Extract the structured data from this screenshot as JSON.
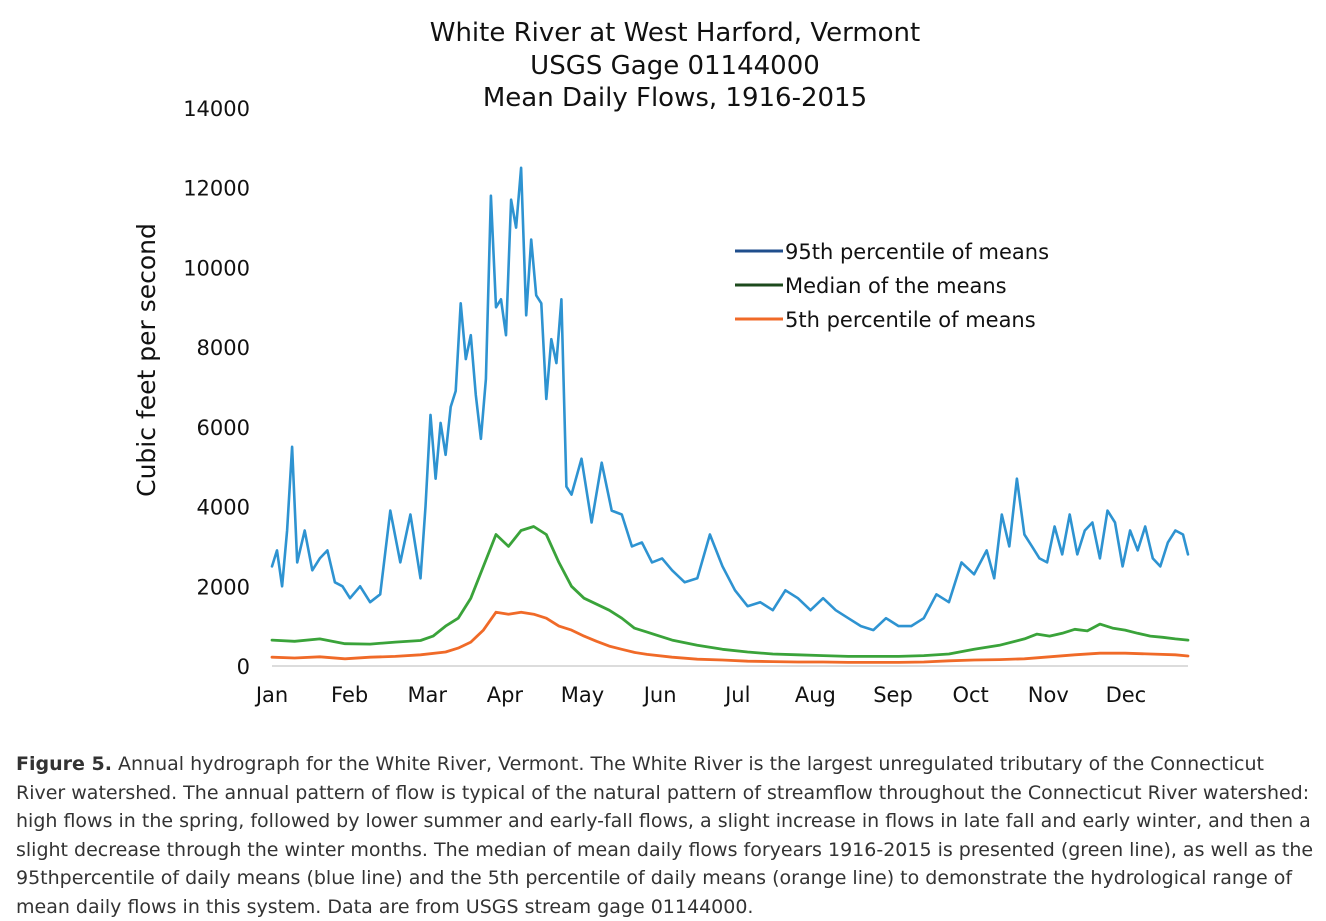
{
  "chart_data": {
    "type": "line",
    "title": [
      "White River at West Harford, Vermont",
      "USGS Gage 01144000",
      "Mean Daily Flows, 1916-2015"
    ],
    "xlabel": "",
    "ylabel": "Cubic feet per second",
    "ylim": [
      0,
      14000
    ],
    "yticks": [
      "0",
      "2000",
      "4000",
      "6000",
      "8000",
      "10000",
      "12000",
      "14000"
    ],
    "categories": [
      "Jan",
      "Feb",
      "Mar",
      "Apr",
      "May",
      "Jun",
      "Jul",
      "Aug",
      "Sep",
      "Oct",
      "Nov",
      "Dec"
    ],
    "grid": false,
    "legend_position": "upper-right",
    "series": [
      {
        "name": "95th percentile of means",
        "color": "#2e93d1",
        "x": [
          1,
          3,
          5,
          7,
          9,
          11,
          14,
          17,
          20,
          23,
          26,
          29,
          32,
          36,
          40,
          44,
          48,
          52,
          56,
          60,
          62,
          64,
          66,
          68,
          70,
          72,
          74,
          76,
          78,
          80,
          82,
          84,
          86,
          88,
          90,
          92,
          94,
          96,
          98,
          100,
          102,
          104,
          106,
          108,
          110,
          112,
          114,
          116,
          118,
          120,
          124,
          128,
          132,
          136,
          140,
          144,
          148,
          152,
          156,
          160,
          165,
          170,
          175,
          180,
          185,
          190,
          195,
          200,
          205,
          210,
          215,
          220,
          225,
          230,
          235,
          240,
          245,
          250,
          255,
          260,
          265,
          270,
          275,
          280,
          285,
          288,
          291,
          294,
          297,
          300,
          303,
          306,
          309,
          312,
          315,
          318,
          321,
          324,
          327,
          330,
          333,
          336,
          339,
          342,
          345,
          348,
          351,
          354,
          357,
          360,
          363,
          365
        ],
        "values": [
          2500,
          2900,
          2000,
          3400,
          5500,
          2600,
          3400,
          2400,
          2700,
          2900,
          2100,
          2000,
          1700,
          2000,
          1600,
          1800,
          3900,
          2600,
          3800,
          2200,
          4000,
          6300,
          4700,
          6100,
          5300,
          6500,
          6900,
          9100,
          7700,
          8300,
          6800,
          5700,
          7200,
          11800,
          9000,
          9200,
          8300,
          11700,
          11000,
          12500,
          8800,
          10700,
          9300,
          9100,
          6700,
          8200,
          7600,
          9200,
          4500,
          4300,
          5200,
          3600,
          5100,
          3900,
          3800,
          3000,
          3100,
          2600,
          2700,
          2400,
          2100,
          2200,
          3300,
          2500,
          1900,
          1500,
          1600,
          1400,
          1900,
          1700,
          1400,
          1700,
          1400,
          1200,
          1000,
          900,
          1200,
          1000,
          1000,
          1200,
          1800,
          1600,
          2600,
          2300,
          2900,
          2200,
          3800,
          3000,
          4700,
          3300,
          3000,
          2700,
          2600,
          3500,
          2800,
          3800,
          2800,
          3400,
          3600,
          2700,
          3900,
          3600,
          2500,
          3400,
          2900,
          3500,
          2700,
          2500,
          3100,
          3400,
          3300,
          2800
        ]
      },
      {
        "name": "Median of the means",
        "color": "#3aa33a",
        "x": [
          1,
          10,
          20,
          30,
          40,
          50,
          60,
          65,
          70,
          75,
          80,
          85,
          90,
          95,
          100,
          105,
          110,
          115,
          120,
          125,
          130,
          135,
          140,
          145,
          150,
          160,
          170,
          180,
          190,
          200,
          210,
          220,
          230,
          240,
          250,
          260,
          270,
          280,
          290,
          300,
          305,
          310,
          315,
          320,
          325,
          330,
          335,
          340,
          345,
          350,
          355,
          360,
          365
        ],
        "values": [
          650,
          620,
          680,
          560,
          550,
          600,
          640,
          750,
          1000,
          1200,
          1700,
          2500,
          3300,
          3000,
          3400,
          3500,
          3300,
          2600,
          2000,
          1700,
          1550,
          1400,
          1200,
          950,
          850,
          650,
          520,
          420,
          350,
          300,
          280,
          260,
          240,
          240,
          240,
          260,
          300,
          420,
          520,
          680,
          800,
          750,
          820,
          920,
          880,
          1050,
          950,
          900,
          820,
          750,
          720,
          680,
          650
        ]
      },
      {
        "name": "5th percentile of means",
        "color": "#f06a28",
        "x": [
          1,
          10,
          20,
          30,
          40,
          50,
          60,
          70,
          75,
          80,
          85,
          90,
          95,
          100,
          105,
          110,
          115,
          120,
          125,
          130,
          135,
          140,
          145,
          150,
          160,
          170,
          180,
          190,
          200,
          210,
          220,
          230,
          240,
          250,
          260,
          270,
          280,
          290,
          300,
          310,
          320,
          330,
          340,
          350,
          360,
          365
        ],
        "values": [
          220,
          200,
          230,
          180,
          220,
          240,
          280,
          350,
          450,
          600,
          900,
          1350,
          1300,
          1350,
          1300,
          1200,
          1000,
          900,
          750,
          620,
          500,
          420,
          340,
          290,
          220,
          170,
          150,
          120,
          110,
          100,
          100,
          90,
          90,
          90,
          100,
          130,
          150,
          160,
          180,
          230,
          280,
          320,
          320,
          300,
          280,
          250
        ]
      }
    ]
  },
  "caption": {
    "label": "Figure 5.",
    "text": "Annual hydrograph for the White River, Vermont. The White River is the largest unregulated tributary of the Connecticut River watershed. The annual pattern of flow is typical of the natural pattern of streamflow throughout the Connecticut River watershed: high flows in the spring, followed by lower summer and early-fall flows, a slight increase in flows in late fall and early winter, and then a slight decrease through the winter months. The median of mean daily flows foryears 1916-2015 is presented (green line), as well as the 95thpercentile of daily means (blue line) and the 5th percentile of daily means (orange line) to demonstrate the hydrological range of mean daily flows in this system. Data are from USGS stream gage 01144000."
  }
}
